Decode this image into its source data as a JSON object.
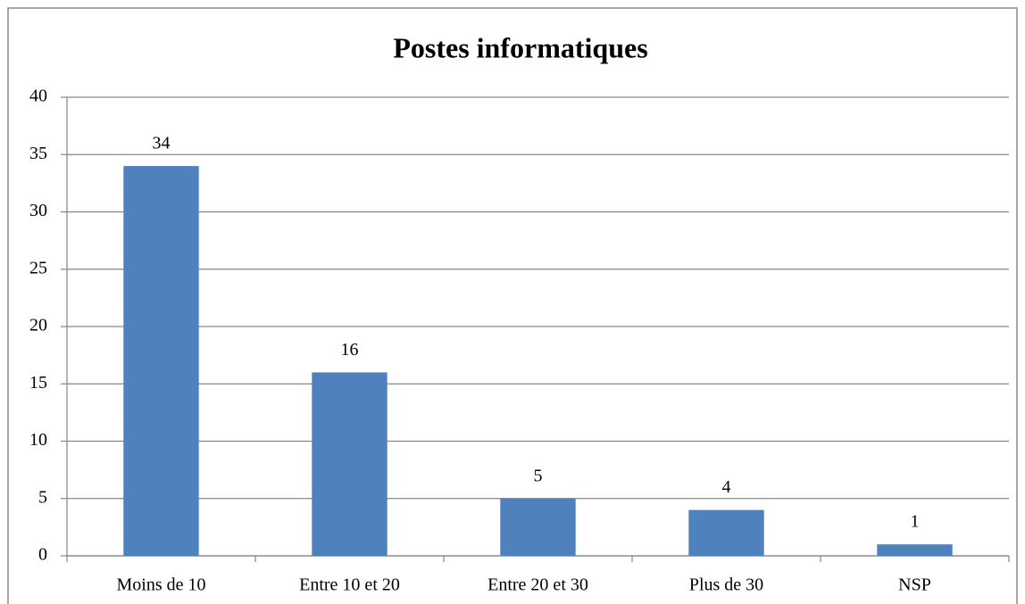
{
  "chart_data": {
    "type": "bar",
    "title": "Postes informatiques",
    "categories": [
      "Moins de 10",
      "Entre 10 et 20",
      "Entre 20 et 30",
      "Plus de 30",
      "NSP"
    ],
    "values": [
      34,
      16,
      5,
      4,
      1
    ],
    "color": "#4f81bd",
    "ylim": [
      0,
      40
    ],
    "yticks": [
      0,
      5,
      10,
      15,
      20,
      25,
      30,
      35,
      40
    ],
    "grid": true
  }
}
